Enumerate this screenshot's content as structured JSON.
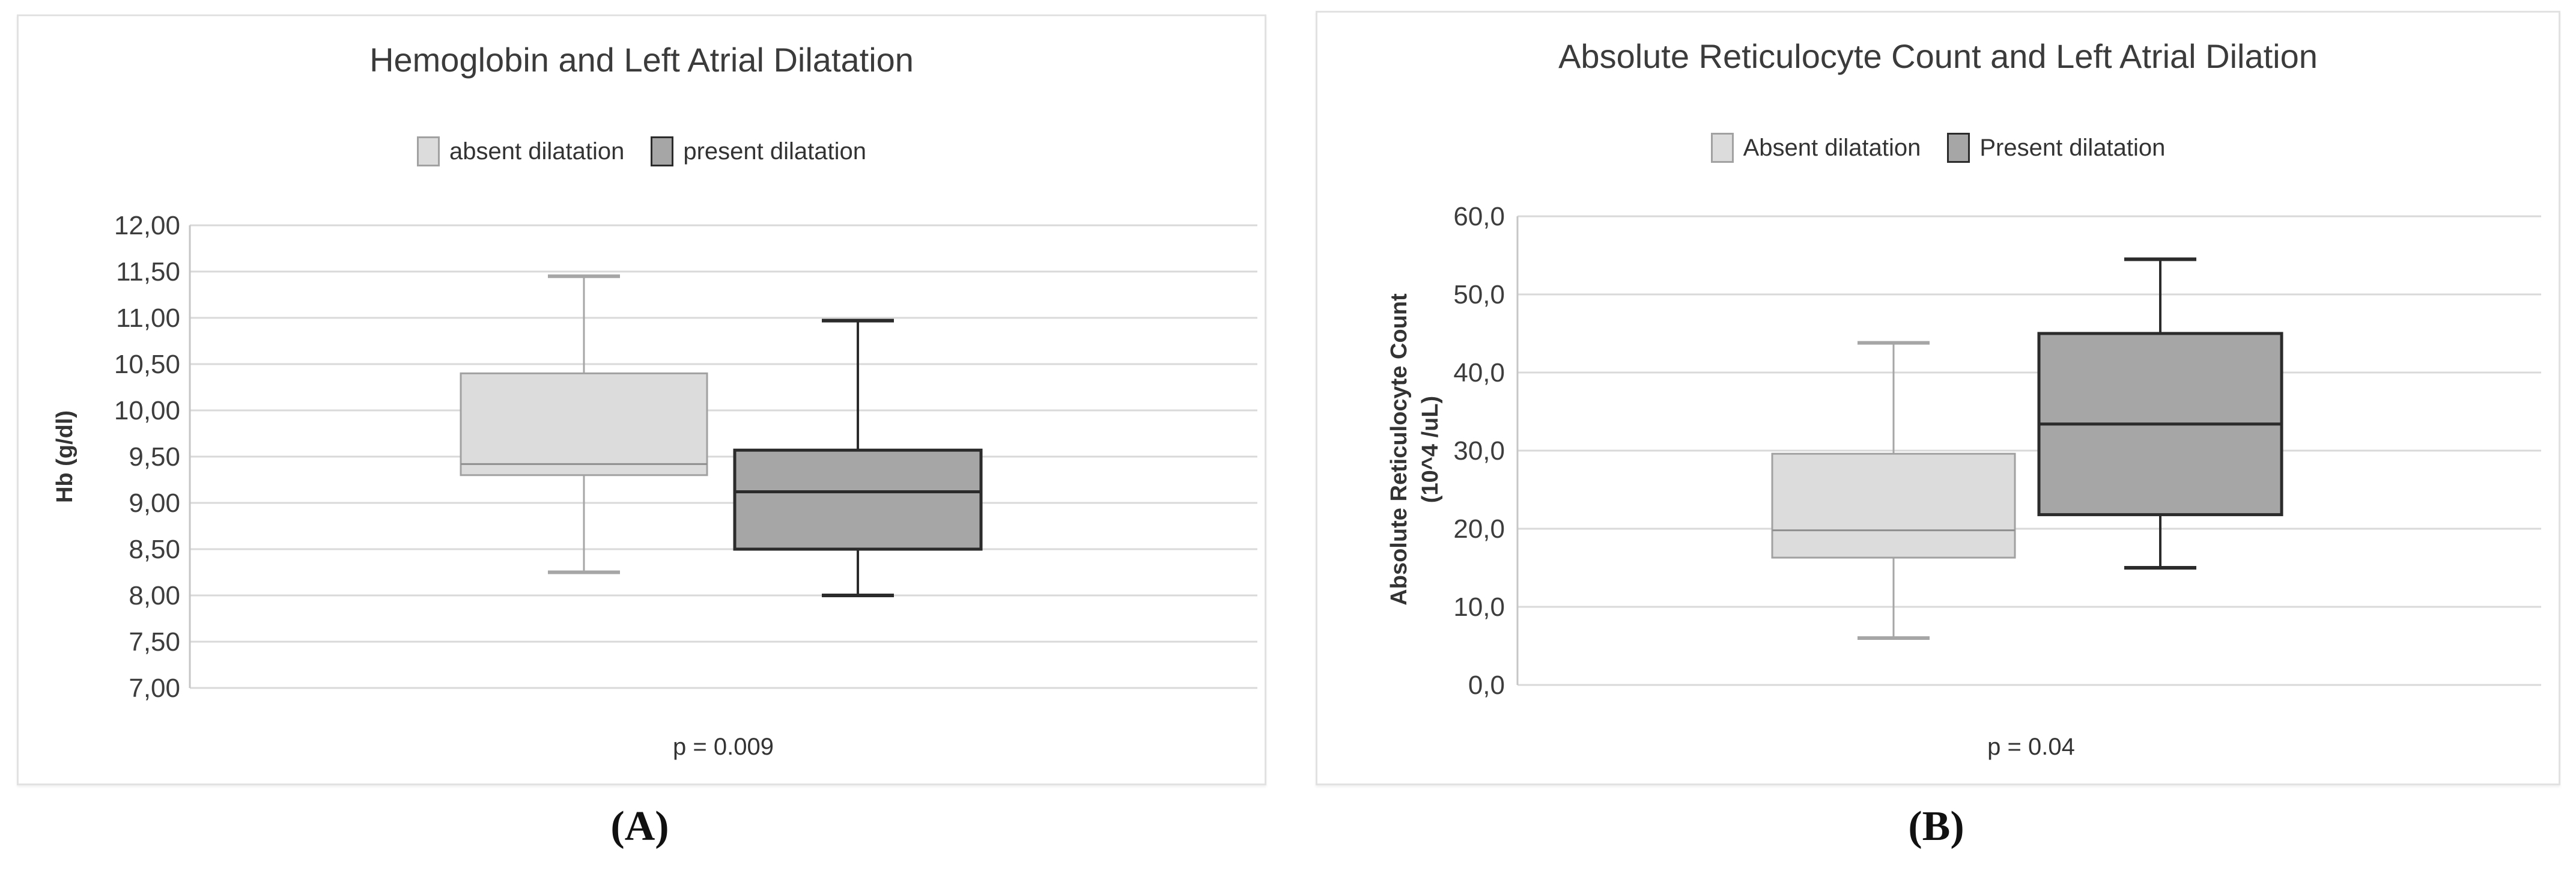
{
  "panels": [
    {
      "caption": "(A)"
    },
    {
      "caption": "(B)"
    }
  ],
  "chart_data": [
    {
      "type": "box",
      "title": "Hemoglobin and Left Atrial Dilatation",
      "ylabel": "Hb (g/dl)",
      "ylabel_lines": [
        "Hb (g/dl)"
      ],
      "ylim": [
        7.0,
        12.0
      ],
      "ytick_values": [
        12.0,
        11.5,
        11.0,
        10.5,
        10.0,
        9.5,
        9.0,
        8.5,
        8.0,
        7.5,
        7.0
      ],
      "ytick_labels": [
        "12,00",
        "11,50",
        "11,00",
        "10,50",
        "10,00",
        "9,50",
        "9,00",
        "8,50",
        "8,00",
        "7,50",
        "7,00"
      ],
      "grid": true,
      "legend_position": "top",
      "annotation": "p = 0.009",
      "colors": {
        "grid": "#d9d9d9",
        "axis": "#c6c6c6",
        "text": "#3d3d3d"
      },
      "series": [
        {
          "name": "absent dilatation",
          "min": 8.25,
          "q1": 9.3,
          "median": 9.42,
          "q3": 10.4,
          "max": 11.45,
          "fill": "#dcdcdc",
          "border": "#a1a1a1",
          "whisker": "#a6a6a6",
          "median_color": "#8f8f8f",
          "border_width": 3
        },
        {
          "name": "present dilatation",
          "min": 8.0,
          "q1": 8.5,
          "median": 9.12,
          "q3": 9.57,
          "max": 10.97,
          "fill": "#a6a6a6",
          "border": "#2b2b2b",
          "whisker": "#2b2b2b",
          "median_color": "#2b2b2b",
          "border_width": 5
        }
      ]
    },
    {
      "type": "box",
      "title": "Absolute Reticulocyte Count and Left Atrial Dilation",
      "ylabel": "Absolute Reticulocyte Count (10^4 /uL)",
      "ylabel_lines": [
        "Absolute Reticulocyte Count",
        "(10^4 /uL)"
      ],
      "ylim": [
        0.0,
        60.0
      ],
      "ytick_values": [
        60,
        50,
        40,
        30,
        20,
        10,
        0
      ],
      "ytick_labels": [
        "60,0",
        "50,0",
        "40,0",
        "30,0",
        "20,0",
        "10,0",
        "0,0"
      ],
      "grid": true,
      "legend_position": "top",
      "annotation": "p = 0.04",
      "colors": {
        "grid": "#d9d9d9",
        "axis": "#c6c6c6",
        "text": "#3d3d3d"
      },
      "series": [
        {
          "name": "Absent dilatation",
          "min": 6.0,
          "q1": 16.3,
          "median": 19.8,
          "q3": 29.6,
          "max": 43.8,
          "fill": "#dcdcdc",
          "border": "#a1a1a1",
          "whisker": "#a6a6a6",
          "median_color": "#8f8f8f",
          "border_width": 3
        },
        {
          "name": "Present dilatation",
          "min": 15.0,
          "q1": 21.8,
          "median": 33.4,
          "q3": 45.0,
          "max": 54.5,
          "fill": "#a6a6a6",
          "border": "#2b2b2b",
          "whisker": "#2b2b2b",
          "median_color": "#2b2b2b",
          "border_width": 5
        }
      ]
    }
  ]
}
